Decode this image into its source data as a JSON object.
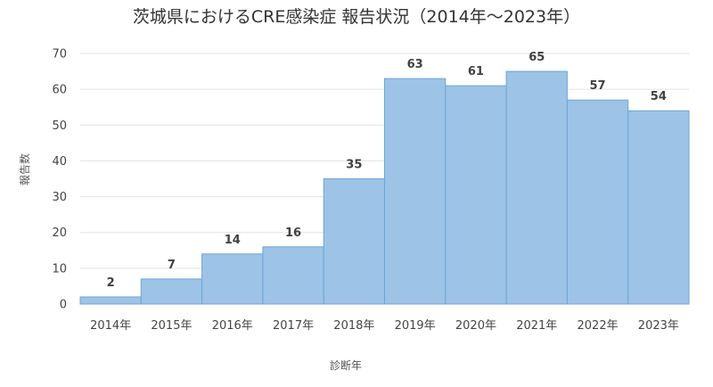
{
  "chart_data": {
    "type": "bar",
    "title": "茨城県におけるCRE感染症 報告状況（2014年〜2023年）",
    "xlabel": "診断年",
    "ylabel": "報告数",
    "categories": [
      "2014年",
      "2015年",
      "2016年",
      "2017年",
      "2018年",
      "2019年",
      "2020年",
      "2021年",
      "2022年",
      "2023年"
    ],
    "values": [
      2,
      7,
      14,
      16,
      35,
      63,
      61,
      65,
      57,
      54
    ],
    "ylim": [
      0,
      70
    ],
    "yticks": [
      0,
      10,
      20,
      30,
      40,
      50,
      60,
      70
    ],
    "grid": true,
    "legend": "none",
    "bar_color": "#9dc3e6",
    "bar_edge_color": "#6ea6d6"
  }
}
